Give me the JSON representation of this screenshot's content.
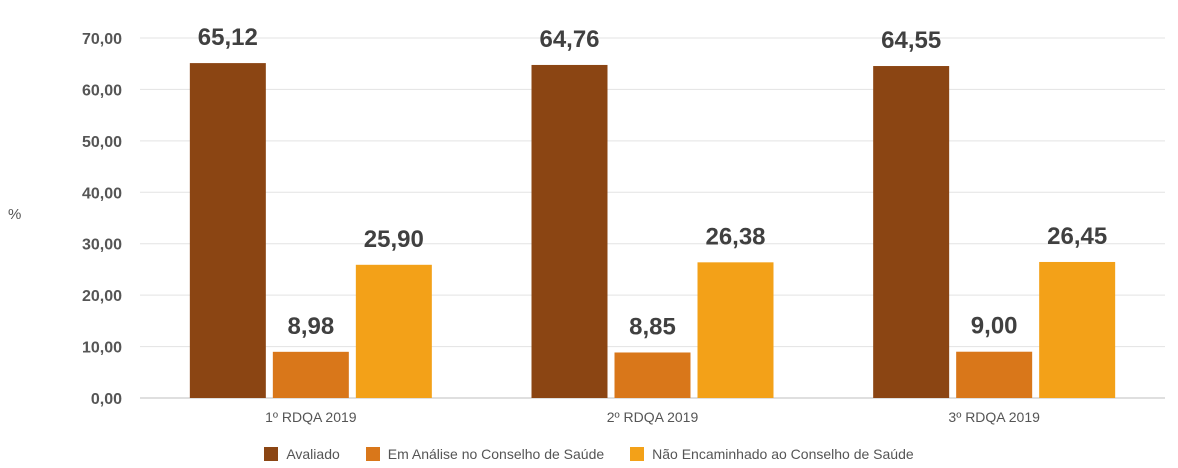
{
  "chart_data": {
    "type": "bar",
    "title": "",
    "xlabel": "",
    "ylabel": "%",
    "ylim": [
      0,
      70
    ],
    "yticks": [
      "0,00",
      "10,00",
      "20,00",
      "30,00",
      "40,00",
      "50,00",
      "60,00",
      "70,00"
    ],
    "categories": [
      "1º RDQA 2019",
      "2º RDQA 2019",
      "3º RDQA 2019"
    ],
    "grid": true,
    "legend_position": "bottom",
    "series": [
      {
        "name": "Avaliado",
        "color": "#8B4513",
        "values": [
          65.12,
          64.76,
          64.55
        ],
        "labels": [
          "65,12",
          "64,76",
          "64,55"
        ]
      },
      {
        "name": "Em Análise no Conselho de Saúde",
        "color": "#D9771A",
        "values": [
          8.98,
          8.85,
          9.0
        ],
        "labels": [
          "8,98",
          "8,85",
          "9,00"
        ]
      },
      {
        "name": "Não Encaminhado ao Conselho de Saúde",
        "color": "#F3A118",
        "values": [
          25.9,
          26.38,
          26.45
        ],
        "labels": [
          "25,90",
          "26,38",
          "26,45"
        ]
      }
    ]
  }
}
